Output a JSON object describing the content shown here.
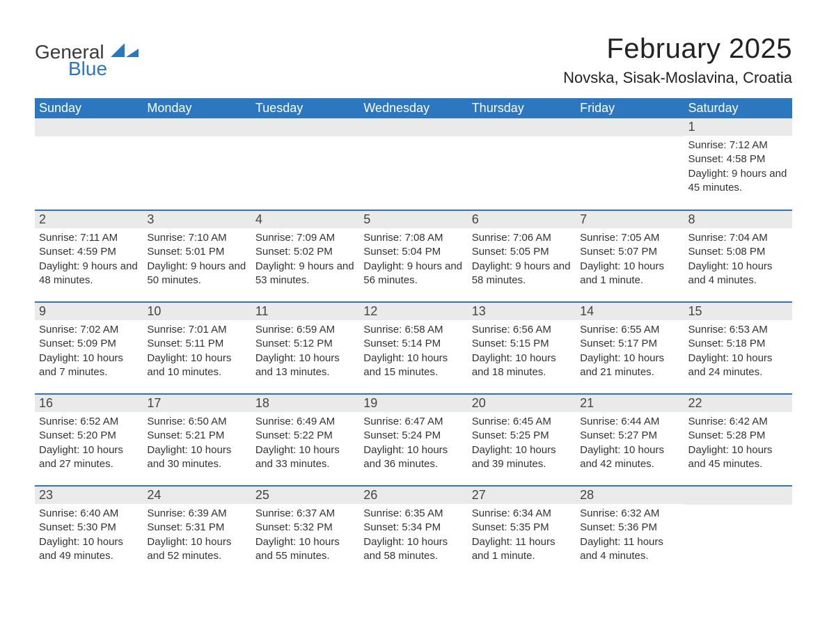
{
  "logo": {
    "text_general": "General",
    "text_blue": "Blue",
    "accent_color": "#2b77c0"
  },
  "title": "February 2025",
  "location": "Novska, Sisak-Moslavina, Croatia",
  "colors": {
    "header_bg": "#2b77c0",
    "header_text": "#ffffff",
    "daynum_bg": "#eaeaea",
    "daynum_text": "#444444",
    "body_text": "#333333",
    "divider": "#2b77c0",
    "page_bg": "#ffffff"
  },
  "typography": {
    "title_fontsize": 40,
    "location_fontsize": 22,
    "weekday_fontsize": 18,
    "daynum_fontsize": 18,
    "body_fontsize": 15,
    "font_family": "Segoe UI"
  },
  "weekdays": [
    "Sunday",
    "Monday",
    "Tuesday",
    "Wednesday",
    "Thursday",
    "Friday",
    "Saturday"
  ],
  "weeks": [
    [
      {},
      {},
      {},
      {},
      {},
      {},
      {
        "n": "1",
        "sr": "Sunrise: 7:12 AM",
        "ss": "Sunset: 4:58 PM",
        "dl": "Daylight: 9 hours and 45 minutes."
      }
    ],
    [
      {
        "n": "2",
        "sr": "Sunrise: 7:11 AM",
        "ss": "Sunset: 4:59 PM",
        "dl": "Daylight: 9 hours and 48 minutes."
      },
      {
        "n": "3",
        "sr": "Sunrise: 7:10 AM",
        "ss": "Sunset: 5:01 PM",
        "dl": "Daylight: 9 hours and 50 minutes."
      },
      {
        "n": "4",
        "sr": "Sunrise: 7:09 AM",
        "ss": "Sunset: 5:02 PM",
        "dl": "Daylight: 9 hours and 53 minutes."
      },
      {
        "n": "5",
        "sr": "Sunrise: 7:08 AM",
        "ss": "Sunset: 5:04 PM",
        "dl": "Daylight: 9 hours and 56 minutes."
      },
      {
        "n": "6",
        "sr": "Sunrise: 7:06 AM",
        "ss": "Sunset: 5:05 PM",
        "dl": "Daylight: 9 hours and 58 minutes."
      },
      {
        "n": "7",
        "sr": "Sunrise: 7:05 AM",
        "ss": "Sunset: 5:07 PM",
        "dl": "Daylight: 10 hours and 1 minute."
      },
      {
        "n": "8",
        "sr": "Sunrise: 7:04 AM",
        "ss": "Sunset: 5:08 PM",
        "dl": "Daylight: 10 hours and 4 minutes."
      }
    ],
    [
      {
        "n": "9",
        "sr": "Sunrise: 7:02 AM",
        "ss": "Sunset: 5:09 PM",
        "dl": "Daylight: 10 hours and 7 minutes."
      },
      {
        "n": "10",
        "sr": "Sunrise: 7:01 AM",
        "ss": "Sunset: 5:11 PM",
        "dl": "Daylight: 10 hours and 10 minutes."
      },
      {
        "n": "11",
        "sr": "Sunrise: 6:59 AM",
        "ss": "Sunset: 5:12 PM",
        "dl": "Daylight: 10 hours and 13 minutes."
      },
      {
        "n": "12",
        "sr": "Sunrise: 6:58 AM",
        "ss": "Sunset: 5:14 PM",
        "dl": "Daylight: 10 hours and 15 minutes."
      },
      {
        "n": "13",
        "sr": "Sunrise: 6:56 AM",
        "ss": "Sunset: 5:15 PM",
        "dl": "Daylight: 10 hours and 18 minutes."
      },
      {
        "n": "14",
        "sr": "Sunrise: 6:55 AM",
        "ss": "Sunset: 5:17 PM",
        "dl": "Daylight: 10 hours and 21 minutes."
      },
      {
        "n": "15",
        "sr": "Sunrise: 6:53 AM",
        "ss": "Sunset: 5:18 PM",
        "dl": "Daylight: 10 hours and 24 minutes."
      }
    ],
    [
      {
        "n": "16",
        "sr": "Sunrise: 6:52 AM",
        "ss": "Sunset: 5:20 PM",
        "dl": "Daylight: 10 hours and 27 minutes."
      },
      {
        "n": "17",
        "sr": "Sunrise: 6:50 AM",
        "ss": "Sunset: 5:21 PM",
        "dl": "Daylight: 10 hours and 30 minutes."
      },
      {
        "n": "18",
        "sr": "Sunrise: 6:49 AM",
        "ss": "Sunset: 5:22 PM",
        "dl": "Daylight: 10 hours and 33 minutes."
      },
      {
        "n": "19",
        "sr": "Sunrise: 6:47 AM",
        "ss": "Sunset: 5:24 PM",
        "dl": "Daylight: 10 hours and 36 minutes."
      },
      {
        "n": "20",
        "sr": "Sunrise: 6:45 AM",
        "ss": "Sunset: 5:25 PM",
        "dl": "Daylight: 10 hours and 39 minutes."
      },
      {
        "n": "21",
        "sr": "Sunrise: 6:44 AM",
        "ss": "Sunset: 5:27 PM",
        "dl": "Daylight: 10 hours and 42 minutes."
      },
      {
        "n": "22",
        "sr": "Sunrise: 6:42 AM",
        "ss": "Sunset: 5:28 PM",
        "dl": "Daylight: 10 hours and 45 minutes."
      }
    ],
    [
      {
        "n": "23",
        "sr": "Sunrise: 6:40 AM",
        "ss": "Sunset: 5:30 PM",
        "dl": "Daylight: 10 hours and 49 minutes."
      },
      {
        "n": "24",
        "sr": "Sunrise: 6:39 AM",
        "ss": "Sunset: 5:31 PM",
        "dl": "Daylight: 10 hours and 52 minutes."
      },
      {
        "n": "25",
        "sr": "Sunrise: 6:37 AM",
        "ss": "Sunset: 5:32 PM",
        "dl": "Daylight: 10 hours and 55 minutes."
      },
      {
        "n": "26",
        "sr": "Sunrise: 6:35 AM",
        "ss": "Sunset: 5:34 PM",
        "dl": "Daylight: 10 hours and 58 minutes."
      },
      {
        "n": "27",
        "sr": "Sunrise: 6:34 AM",
        "ss": "Sunset: 5:35 PM",
        "dl": "Daylight: 11 hours and 1 minute."
      },
      {
        "n": "28",
        "sr": "Sunrise: 6:32 AM",
        "ss": "Sunset: 5:36 PM",
        "dl": "Daylight: 11 hours and 4 minutes."
      },
      {}
    ]
  ]
}
